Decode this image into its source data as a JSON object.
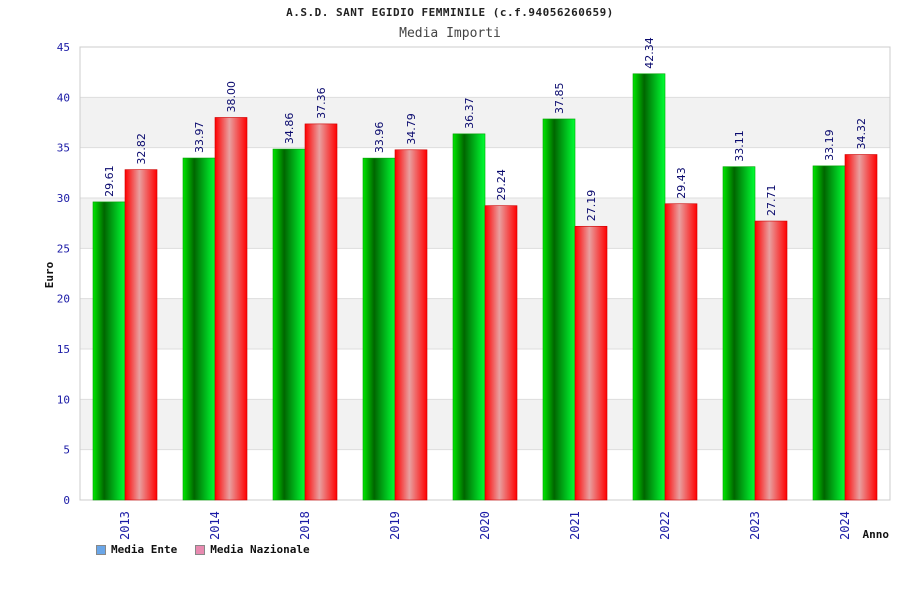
{
  "chart_data": {
    "type": "bar",
    "title": "A.S.D. SANT EGIDIO FEMMINILE (c.f.94056260659)",
    "subtitle": "Media Importi",
    "xlabel": "Anno",
    "ylabel": "Euro",
    "ylim": [
      0,
      45
    ],
    "yticks": [
      "0",
      "5",
      "10",
      "15",
      "20",
      "25",
      "30",
      "35",
      "40",
      "45"
    ],
    "categories": [
      "2013",
      "2014",
      "2018",
      "2019",
      "2020",
      "2021",
      "2022",
      "2023",
      "2024"
    ],
    "series": [
      {
        "name": "Media Ente",
        "color": "#00cc00",
        "legend_color": "#6aa6e8",
        "values": [
          29.61,
          33.97,
          34.86,
          33.96,
          36.37,
          37.85,
          42.34,
          33.11,
          33.19
        ],
        "labels": [
          "29.61",
          "33.97",
          "34.86",
          "33.96",
          "36.37",
          "37.85",
          "42.34",
          "33.11",
          "33.19"
        ]
      },
      {
        "name": "Media Nazionale",
        "color": "#ff0000",
        "legend_color": "#e88ab0",
        "values": [
          32.82,
          38.0,
          37.36,
          34.79,
          29.24,
          27.19,
          29.43,
          27.71,
          34.32
        ],
        "labels": [
          "32.82",
          "38.00",
          "37.36",
          "34.79",
          "29.24",
          "27.19",
          "29.43",
          "27.71",
          "34.32"
        ]
      }
    ],
    "grid": true,
    "legend_position": "bottom-left"
  }
}
